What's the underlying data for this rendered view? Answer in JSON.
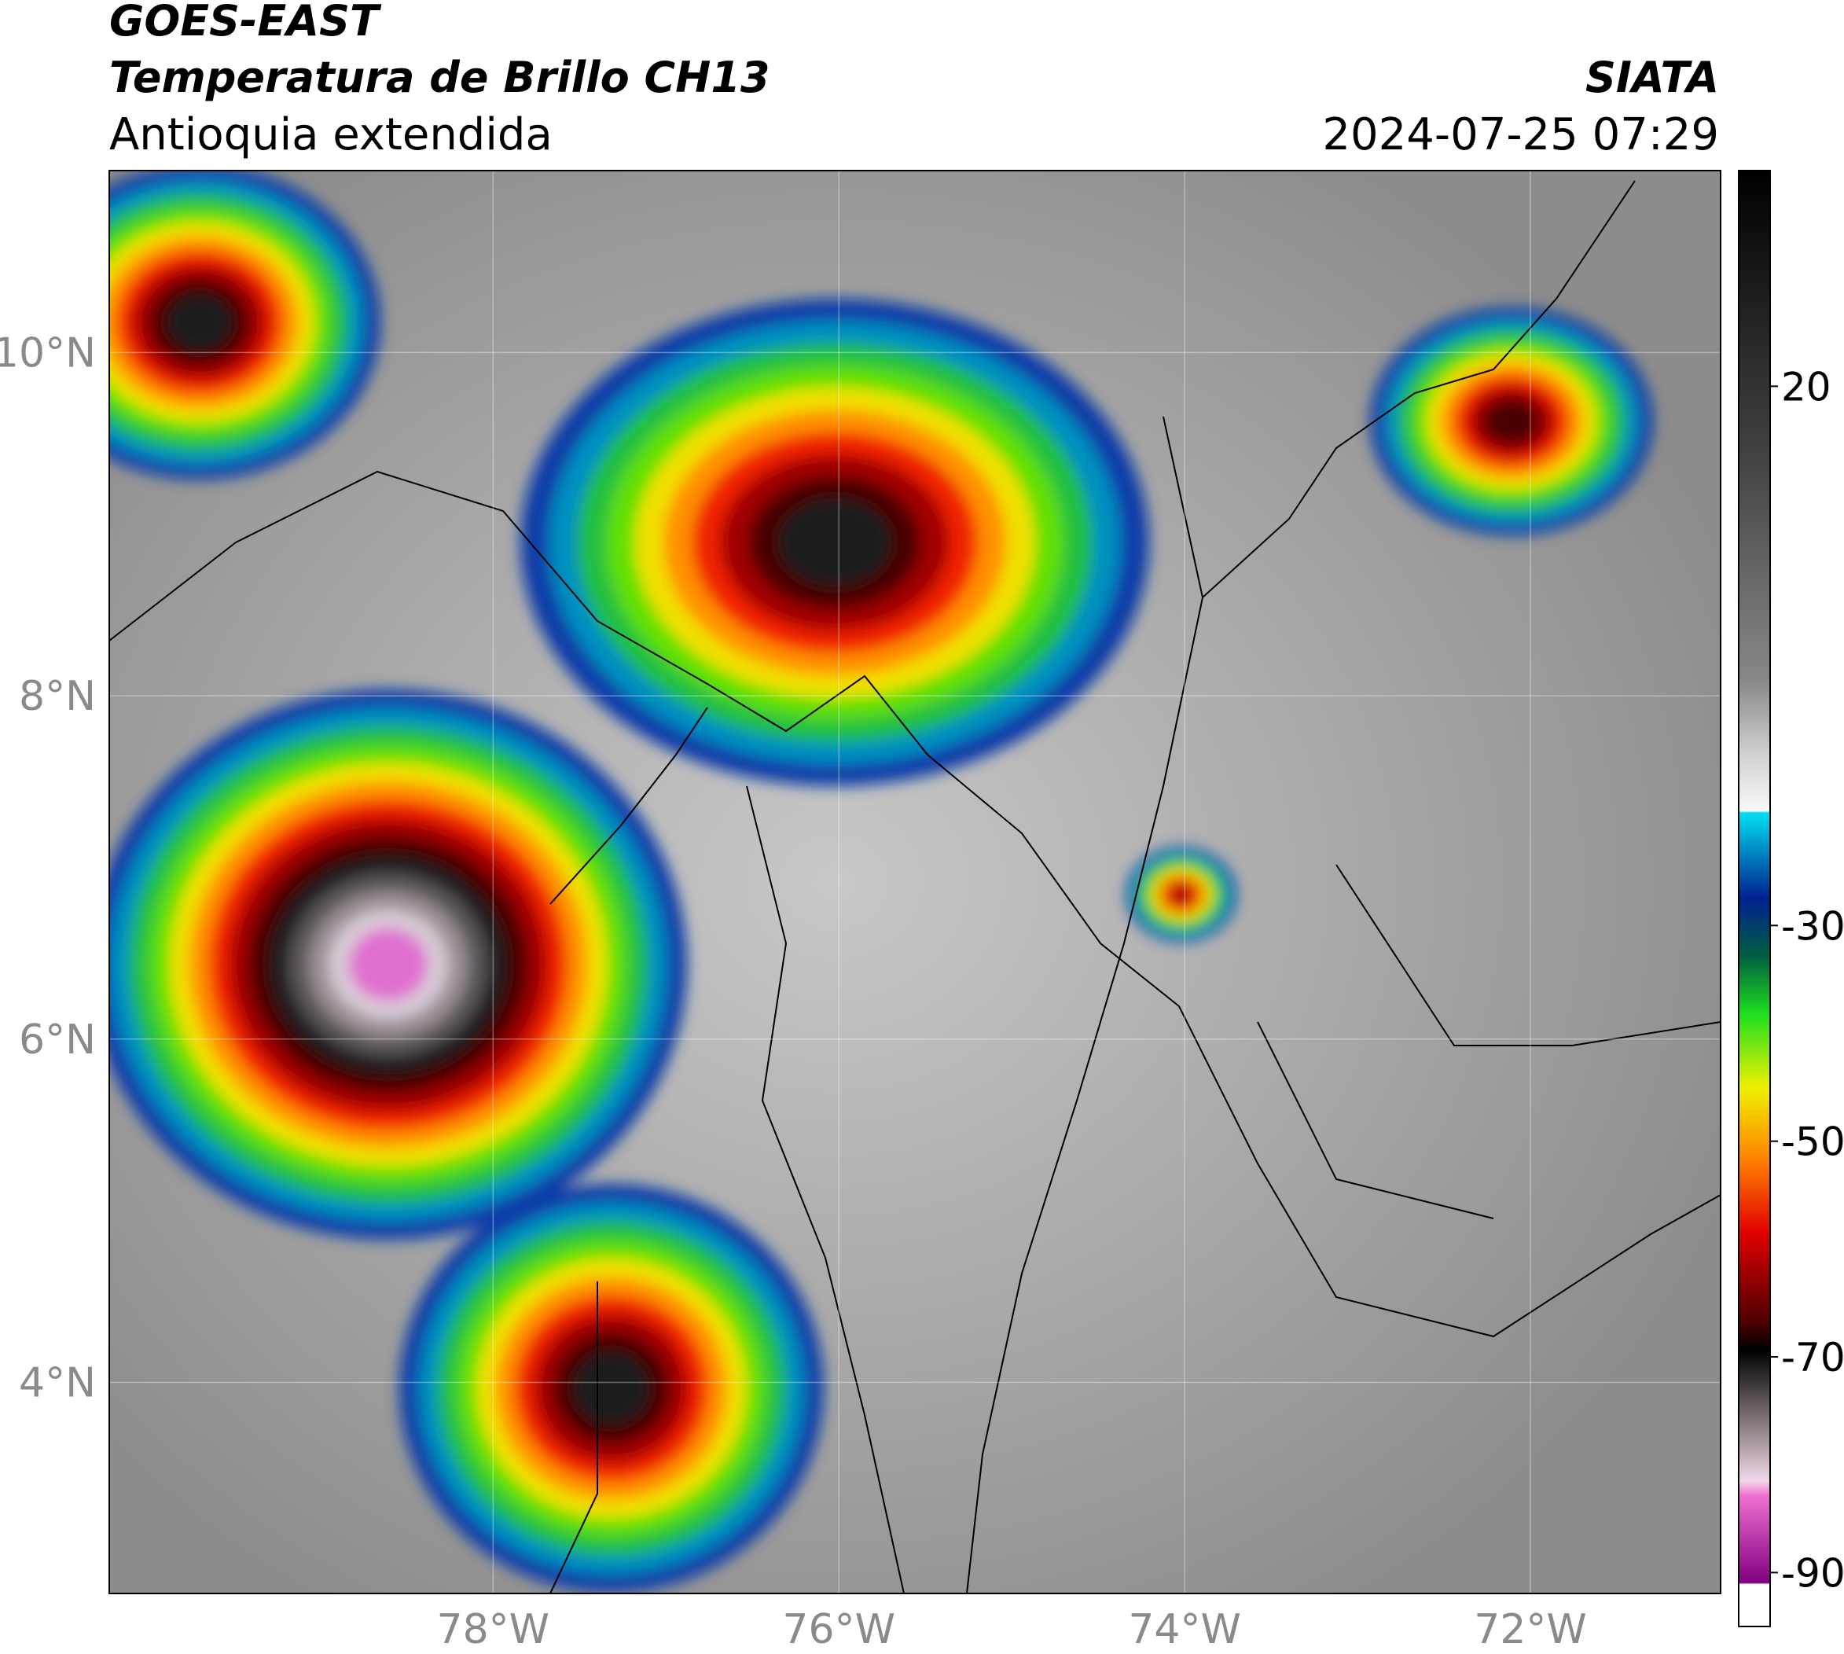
{
  "header": {
    "title": "GOES-EAST",
    "subtitle": "Temperatura de Brillo CH13",
    "region": "Antioquia extendida",
    "source": "SIATA",
    "datetime": "2024-07-25 07:29"
  },
  "map": {
    "xlim": [
      -80.22,
      -70.9
    ],
    "ylim": [
      2.77,
      11.06
    ],
    "xticks": [
      {
        "value": -78,
        "label": "78°W"
      },
      {
        "value": -76,
        "label": "76°W"
      },
      {
        "value": -74,
        "label": "74°W"
      },
      {
        "value": -72,
        "label": "72°W"
      }
    ],
    "yticks": [
      {
        "value": 10,
        "label": "10°N"
      },
      {
        "value": 8,
        "label": "8°N"
      },
      {
        "value": 6,
        "label": "6°N"
      },
      {
        "value": 4,
        "label": "4°N"
      }
    ]
  },
  "colorbar": {
    "lim": [
      -95,
      40
    ],
    "ticks": [
      20,
      -30,
      -50,
      -70,
      -90
    ]
  }
}
